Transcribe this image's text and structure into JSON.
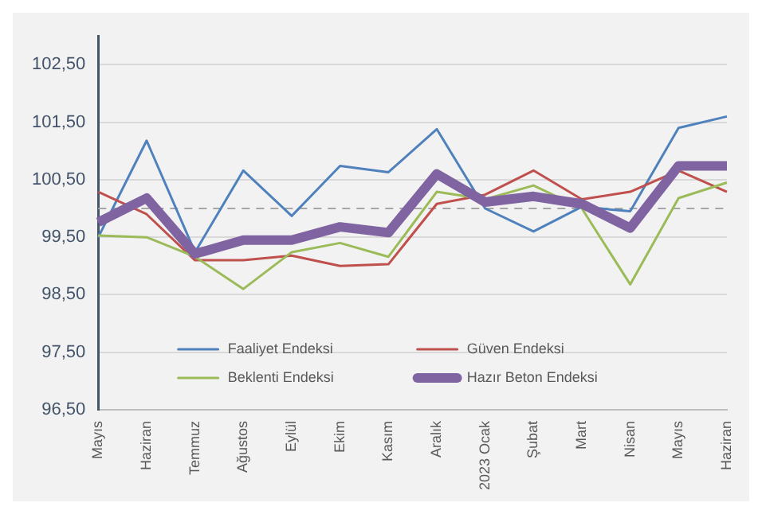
{
  "chart_data": {
    "type": "line",
    "categories": [
      "Mayıs",
      "Haziran",
      "Temmuz",
      "Ağustos",
      "Eylül",
      "Ekim",
      "Kasım",
      "Aralık",
      "2023 Ocak",
      "Şubat",
      "Mart",
      "Nisan",
      "Mayıs",
      "Haziran"
    ],
    "series": [
      {
        "name": "Faaliyet Endeksi",
        "color": "#4f81bd",
        "values": [
          99.5,
          101.18,
          99.24,
          100.66,
          99.87,
          100.74,
          100.63,
          101.38,
          100.0,
          99.6,
          100.03,
          99.95,
          101.4,
          101.6
        ]
      },
      {
        "name": "Güven Endeksi",
        "color": "#c0504d",
        "values": [
          100.29,
          99.9,
          99.1,
          99.1,
          99.18,
          99.0,
          99.03,
          100.08,
          100.24,
          100.66,
          100.16,
          100.29,
          100.66,
          100.29
        ]
      },
      {
        "name": "Beklenti Endeksi",
        "color": "#9bbb59",
        "values": [
          99.53,
          99.5,
          99.16,
          98.6,
          99.24,
          99.4,
          99.16,
          100.29,
          100.16,
          100.4,
          100.0,
          98.68,
          100.18,
          100.45
        ]
      },
      {
        "name": "Hazır Beton Endeksi",
        "color": "#8064a2",
        "values": [
          99.76,
          100.18,
          99.21,
          99.45,
          99.45,
          99.68,
          99.58,
          100.6,
          100.11,
          100.21,
          100.08,
          99.66,
          100.74,
          100.74
        ]
      }
    ],
    "ylim": [
      96.5,
      103
    ],
    "yticks": [
      {
        "value": 96.5,
        "label": "96,50"
      },
      {
        "value": 97.5,
        "label": "97,50"
      },
      {
        "value": 98.5,
        "label": "98,50"
      },
      {
        "value": 99.5,
        "label": "99,50"
      },
      {
        "value": 100.5,
        "label": "100,50"
      },
      {
        "value": 101.5,
        "label": "101,50"
      },
      {
        "value": 102.5,
        "label": "102,50"
      }
    ],
    "ref_lines": [
      {
        "axis": "y",
        "value": 100,
        "color": "#a6a6a6",
        "line_style": "dashed"
      }
    ],
    "grid": "y",
    "legend": "bottom",
    "marker": "none",
    "line_style": "solid"
  }
}
